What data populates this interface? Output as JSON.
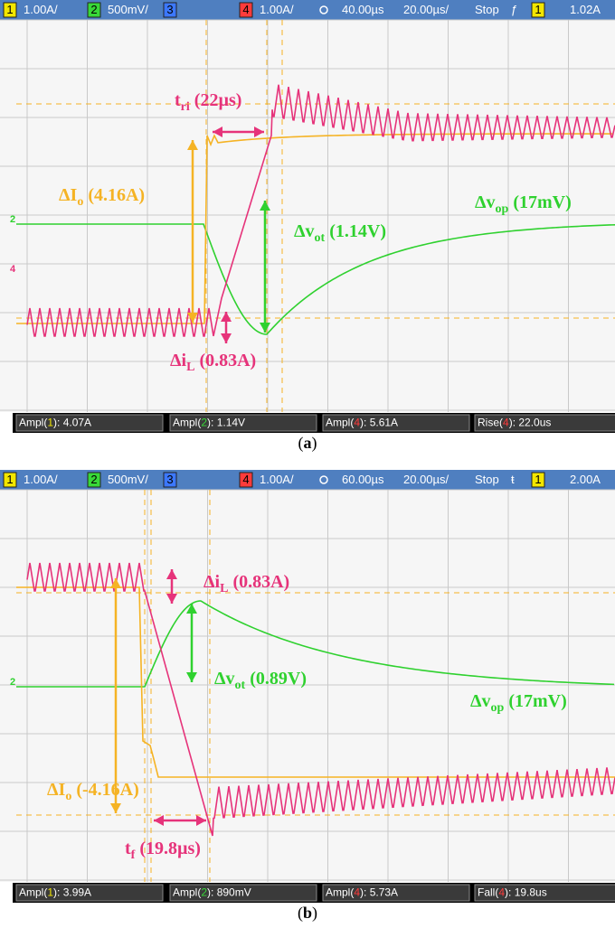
{
  "panels": [
    {
      "header": {
        "ch1": "1",
        "ch1_scale": "1.00A/",
        "ch2": "2",
        "ch2_scale": "500mV/",
        "ch3": "3",
        "ch4": "4",
        "ch4_scale": "1.00A/",
        "time_offset": "40.00µs",
        "time_scale": "20.00µs/",
        "status": "Stop",
        "trigger_slope": "ƒ",
        "trigger_ch": "1",
        "trigger_level": "1.02A"
      },
      "markers": [
        "2",
        "4"
      ],
      "annotations": [
        {
          "main": "t",
          "sub": "ri",
          "rest": " (22µs)"
        },
        {
          "main": "ΔI",
          "sub": "o",
          "rest": " (4.16A)"
        },
        {
          "main": "Δv",
          "sub": "op",
          "rest": " (17mV)"
        },
        {
          "main": "Δv",
          "sub": "ot",
          "rest": " (1.14V)"
        },
        {
          "main": "Δi",
          "sub": "L",
          "rest": " (0.83A)"
        }
      ],
      "measurements": [
        {
          "prefix": "Ampl(",
          "ch": "1",
          "suffix": "): 4.07A"
        },
        {
          "prefix": "Ampl(",
          "ch": "2",
          "suffix": "): 1.14V"
        },
        {
          "prefix": "Ampl(",
          "ch": "4",
          "suffix": "): 5.61A"
        },
        {
          "prefix": "Rise(",
          "ch": "4",
          "suffix": "): 22.0us"
        }
      ],
      "caption": {
        "open": "(",
        "letter": "a",
        "close": ")"
      }
    },
    {
      "header": {
        "ch1": "1",
        "ch1_scale": "1.00A/",
        "ch2": "2",
        "ch2_scale": "500mV/",
        "ch3": "3",
        "ch4": "4",
        "ch4_scale": "1.00A/",
        "time_offset": "60.00µs",
        "time_scale": "20.00µs/",
        "status": "Stop",
        "trigger_slope": "ŧ",
        "trigger_ch": "1",
        "trigger_level": "2.00A"
      },
      "markers": [
        "2"
      ],
      "annotations": [
        {
          "main": "Δi",
          "sub": "L",
          "rest": " (0.83A)"
        },
        {
          "main": "Δv",
          "sub": "ot",
          "rest": " (0.89V)"
        },
        {
          "main": "Δv",
          "sub": "op",
          "rest": " (17mV)"
        },
        {
          "main": "ΔI",
          "sub": "o",
          "rest": " (-4.16A)"
        },
        {
          "main": "t",
          "sub": "f",
          "rest": " (19.8µs)"
        }
      ],
      "measurements": [
        {
          "prefix": "Ampl(",
          "ch": "1",
          "suffix": "): 3.99A"
        },
        {
          "prefix": "Ampl(",
          "ch": "2",
          "suffix": "): 890mV"
        },
        {
          "prefix": "Ampl(",
          "ch": "4",
          "suffix": "): 5.73A"
        },
        {
          "prefix": "Fall(",
          "ch": "4",
          "suffix": "): 19.8us"
        }
      ],
      "caption": {
        "open": "(",
        "letter": "b",
        "close": ")"
      }
    }
  ]
}
